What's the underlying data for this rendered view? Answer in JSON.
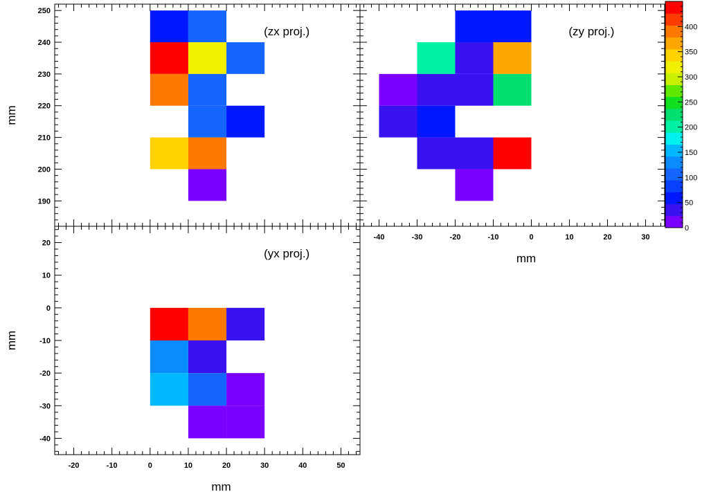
{
  "chart_data": [
    {
      "type": "heatmap",
      "panel": "zx",
      "annotation": "(zx proj.)",
      "xlabel": "",
      "ylabel": "mm",
      "xlim": [
        -25,
        55
      ],
      "ylim": [
        182,
        252
      ],
      "xticks": [],
      "yticks": [
        190,
        200,
        210,
        220,
        230,
        240,
        250
      ],
      "bin_w": 10,
      "bin_h": 10,
      "cells": [
        {
          "x": 0,
          "y": 240,
          "value": 60
        },
        {
          "x": 10,
          "y": 240,
          "value": 100
        },
        {
          "x": 0,
          "y": 230,
          "value": 440
        },
        {
          "x": 10,
          "y": 230,
          "value": 330
        },
        {
          "x": 20,
          "y": 230,
          "value": 100
        },
        {
          "x": 0,
          "y": 220,
          "value": 400
        },
        {
          "x": 10,
          "y": 220,
          "value": 100
        },
        {
          "x": 10,
          "y": 210,
          "value": 100
        },
        {
          "x": 20,
          "y": 210,
          "value": 55
        },
        {
          "x": 0,
          "y": 200,
          "value": 345
        },
        {
          "x": 10,
          "y": 200,
          "value": 400
        },
        {
          "x": 10,
          "y": 190,
          "value": 15
        }
      ]
    },
    {
      "type": "heatmap",
      "panel": "zy",
      "annotation": "(zy proj.)",
      "xlabel": "mm",
      "ylabel": "",
      "xlim": [
        -45,
        35
      ],
      "ylim": [
        182,
        252
      ],
      "xticks": [
        -40,
        -30,
        -20,
        -10,
        0,
        10,
        20,
        30
      ],
      "yticks": [],
      "bin_w": 10,
      "bin_h": 10,
      "cells": [
        {
          "x": -20,
          "y": 240,
          "value": 60
        },
        {
          "x": -10,
          "y": 240,
          "value": 60
        },
        {
          "x": -30,
          "y": 230,
          "value": 195
        },
        {
          "x": -20,
          "y": 230,
          "value": 35
        },
        {
          "x": -10,
          "y": 230,
          "value": 370
        },
        {
          "x": -40,
          "y": 220,
          "value": 20
        },
        {
          "x": -30,
          "y": 220,
          "value": 35
        },
        {
          "x": -20,
          "y": 220,
          "value": 35
        },
        {
          "x": -10,
          "y": 220,
          "value": 235
        },
        {
          "x": -40,
          "y": 210,
          "value": 35
        },
        {
          "x": -30,
          "y": 210,
          "value": 60
        },
        {
          "x": -30,
          "y": 200,
          "value": 35
        },
        {
          "x": -20,
          "y": 200,
          "value": 35
        },
        {
          "x": -10,
          "y": 200,
          "value": 440
        },
        {
          "x": -20,
          "y": 190,
          "value": 20
        }
      ]
    },
    {
      "type": "heatmap",
      "panel": "yx",
      "annotation": "(yx proj.)",
      "xlabel": "mm",
      "ylabel": "mm",
      "xlim": [
        -25,
        55
      ],
      "ylim": [
        -45,
        25
      ],
      "xticks": [
        -20,
        -10,
        0,
        10,
        20,
        30,
        40,
        50
      ],
      "yticks": [
        -40,
        -30,
        -20,
        -10,
        0,
        10,
        20
      ],
      "bin_w": 10,
      "bin_h": 10,
      "cells": [
        {
          "x": 0,
          "y": -10,
          "value": 440
        },
        {
          "x": 10,
          "y": -10,
          "value": 400
        },
        {
          "x": 20,
          "y": -10,
          "value": 35
        },
        {
          "x": 0,
          "y": -20,
          "value": 120
        },
        {
          "x": 10,
          "y": -20,
          "value": 35
        },
        {
          "x": 0,
          "y": -30,
          "value": 165
        },
        {
          "x": 10,
          "y": -30,
          "value": 100
        },
        {
          "x": 20,
          "y": -30,
          "value": 20
        },
        {
          "x": 10,
          "y": -40,
          "value": 20
        },
        {
          "x": 20,
          "y": -40,
          "value": 20
        }
      ]
    }
  ],
  "colorbar": {
    "range": [
      0,
      450
    ],
    "ticks": [
      0,
      50,
      100,
      150,
      200,
      250,
      300,
      350,
      400
    ],
    "colors": [
      "#7a00ff",
      "#3a12f0",
      "#0018ff",
      "#0a40ff",
      "#1466ff",
      "#0a8cff",
      "#00b8ff",
      "#00f0f0",
      "#00f0a6",
      "#00e070",
      "#10e020",
      "#60e800",
      "#c8f000",
      "#f0f000",
      "#ffd200",
      "#ffa600",
      "#ff7800",
      "#ff3c00",
      "#ff0000"
    ]
  }
}
